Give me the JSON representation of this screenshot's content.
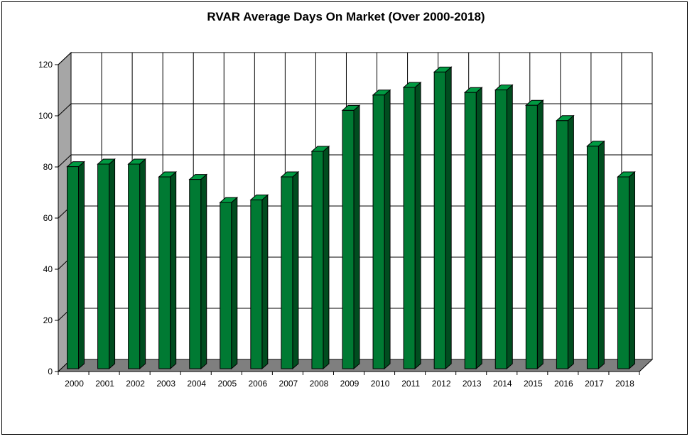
{
  "chart_data": {
    "type": "bar",
    "title": "RVAR Average Days On Market (Over 2000-2018)",
    "xlabel": "",
    "ylabel": "",
    "categories": [
      "2000",
      "2001",
      "2002",
      "2003",
      "2004",
      "2005",
      "2006",
      "2007",
      "2008",
      "2009",
      "2010",
      "2011",
      "2012",
      "2013",
      "2014",
      "2015",
      "2016",
      "2017",
      "2018"
    ],
    "values": [
      79,
      80,
      80,
      75,
      74,
      65,
      66,
      75,
      85,
      101,
      107,
      110,
      116,
      108,
      109,
      103,
      97,
      87,
      75
    ],
    "ylim": [
      0,
      120
    ],
    "yticks": [
      "0",
      "20",
      "40",
      "60",
      "80",
      "100",
      "120"
    ],
    "grid": true,
    "legend": "none",
    "style": "3d-column",
    "colors": {
      "bar_front": "#007a33",
      "bar_side": "#004d1f",
      "bar_top": "#009a42",
      "wall": "#ffffff",
      "side_wall": "#a6a6a6",
      "floor": "#7f7f7f"
    }
  }
}
